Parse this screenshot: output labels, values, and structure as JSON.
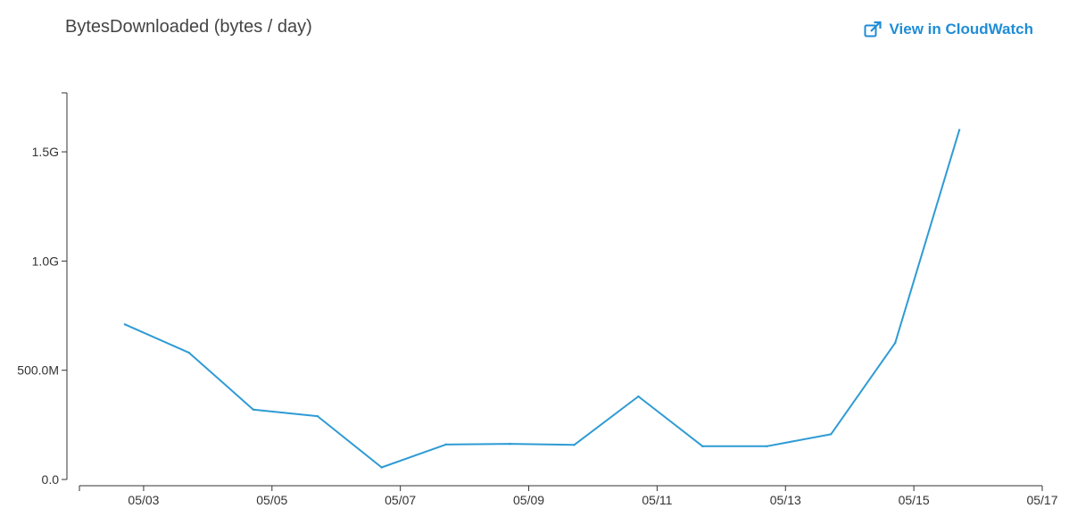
{
  "header": {
    "title": "BytesDownloaded (bytes / day)",
    "link_label": "View in CloudWatch",
    "link_icon": "external-link-icon"
  },
  "colors": {
    "line": "#2e9bd4",
    "link": "#1f8dd6",
    "axis": "#333333"
  },
  "chart_data": {
    "type": "line",
    "title": "BytesDownloaded (bytes / day)",
    "xlabel": "",
    "ylabel": "",
    "x_ticks": [
      "05/03",
      "05/05",
      "05/07",
      "05/09",
      "05/11",
      "05/13",
      "05/15",
      "05/17"
    ],
    "y_ticks": [
      "0.0",
      "500.0M",
      "1.0G",
      "1.5G"
    ],
    "y_tick_values": [
      0,
      500000000,
      1000000000,
      1500000000
    ],
    "ylim": [
      0,
      1770000000
    ],
    "xlim": [
      "05/02 00:00",
      "05/17 00:00"
    ],
    "grid": false,
    "series": [
      {
        "x": [
          "05/02 17:00",
          "05/03 17:00",
          "05/04 17:00",
          "05/05 17:00",
          "05/06 17:00",
          "05/07 17:00",
          "05/08 17:00",
          "05/09 17:00",
          "05/10 17:00",
          "05/11 17:00",
          "05/12 17:00",
          "05/13 17:00",
          "05/14 17:00",
          "05/15 17:00"
        ],
        "values": [
          710000000,
          580000000,
          320000000,
          290000000,
          55000000,
          160000000,
          163000000,
          158000000,
          380000000,
          152000000,
          152000000,
          207000000,
          625000000,
          1600000000
        ]
      }
    ]
  }
}
